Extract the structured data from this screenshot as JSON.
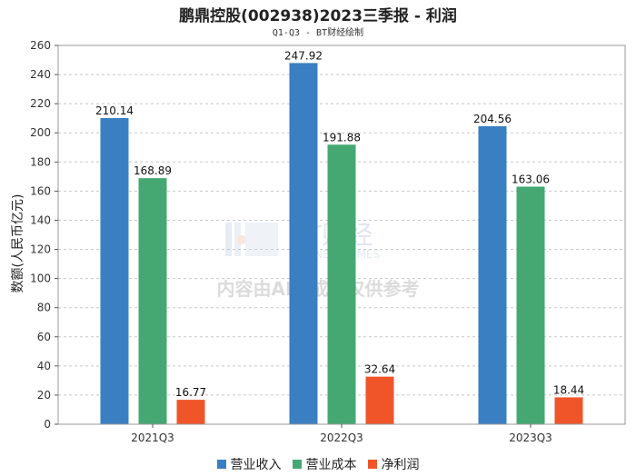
{
  "chart_data": {
    "type": "bar",
    "title": "鹏鼎控股(002938)2023三季报 - 利润",
    "subtitle": "Q1-Q3 - BT财经绘制",
    "xlabel": "",
    "ylabel": "数额(人民币亿元)",
    "ylim": [
      0,
      260
    ],
    "yticks": [
      0,
      20,
      40,
      60,
      80,
      100,
      120,
      140,
      160,
      180,
      200,
      220,
      240,
      260
    ],
    "categories": [
      "2021Q3",
      "2022Q3",
      "2023Q3"
    ],
    "series": [
      {
        "name": "营业收入",
        "color": "#3a7fc1",
        "values": [
          210.14,
          247.92,
          204.56
        ]
      },
      {
        "name": "营业成本",
        "color": "#45a872",
        "values": [
          168.89,
          191.88,
          163.06
        ]
      },
      {
        "name": "净利润",
        "color": "#f0552a",
        "values": [
          16.77,
          32.64,
          18.44
        ]
      }
    ],
    "grid": true,
    "legend_position": "bottom",
    "watermark": {
      "logo_text": "BT财经",
      "logo_subtext": "BUSINESS TIMES",
      "notice": "内容由AI生成，仅供参考"
    }
  }
}
